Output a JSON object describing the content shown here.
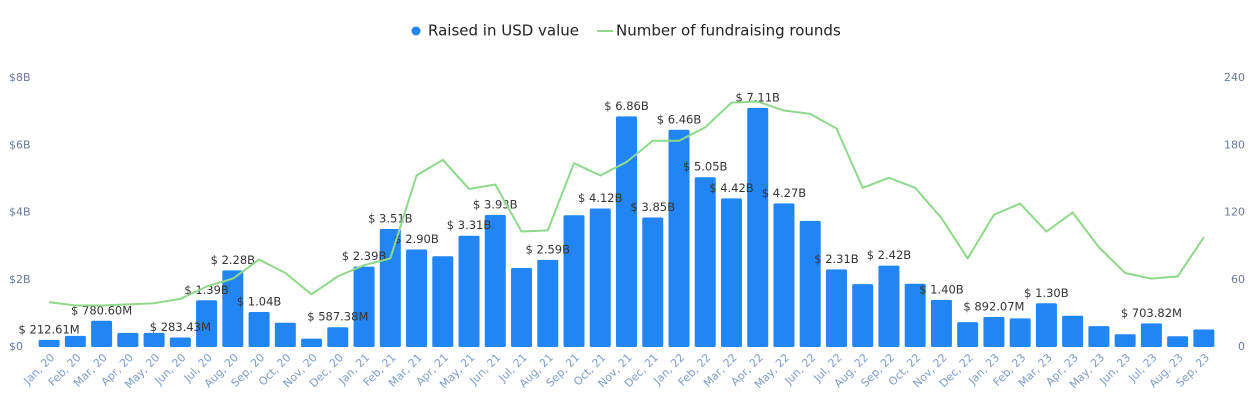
{
  "chart_data": {
    "type": "combo",
    "categories": [
      "Jan, 20",
      "Feb, 20",
      "Mar, 20",
      "Apr, 20",
      "May, 20",
      "Jun, 20",
      "Jul, 20",
      "Aug, 20",
      "Sep, 20",
      "Oct, 20",
      "Nov, 20",
      "Dec, 20",
      "Jan, 21",
      "Feb, 21",
      "Mar, 21",
      "Apr, 21",
      "May, 21",
      "Jun, 21",
      "Jul, 21",
      "Aug, 21",
      "Sep, 21",
      "Oct, 21",
      "Nov, 21",
      "Dec, 21",
      "Jan, 22",
      "Feb, 22",
      "Mar, 22",
      "Apr, 22",
      "May, 22",
      "Jun, 22",
      "Jul, 22",
      "Aug, 22",
      "Sep, 22",
      "Oct, 22",
      "Nov, 22",
      "Dec, 22",
      "Jan, 23",
      "Feb, 23",
      "Mar, 23",
      "Apr, 23",
      "May, 23",
      "Jun, 23",
      "Jul, 23",
      "Aug, 23",
      "Sep, 23"
    ],
    "series": [
      {
        "name": "Raised in USD value",
        "type": "bar",
        "color": "#2186f4",
        "values": [
          0.21261,
          0.33,
          0.7806,
          0.42,
          0.42,
          0.28343,
          1.39,
          2.28,
          1.04,
          0.72,
          0.25,
          0.58738,
          2.39,
          3.51,
          2.9,
          2.7,
          3.31,
          3.93,
          2.35,
          2.59,
          3.92,
          4.12,
          6.86,
          3.85,
          6.46,
          5.05,
          4.42,
          7.11,
          4.27,
          3.75,
          2.31,
          1.87,
          2.42,
          1.88,
          1.4,
          0.74,
          0.89207,
          0.85,
          1.3,
          0.93,
          0.62,
          0.38,
          0.70382,
          0.32,
          0.52
        ],
        "value_labels": [
          "$ 212.61M",
          null,
          "$ 780.60M",
          null,
          null,
          "$ 283.43M",
          "$ 1.39B",
          "$ 2.28B",
          "$ 1.04B",
          null,
          null,
          "$ 587.38M",
          "$ 2.39B",
          "$ 3.51B",
          "$ 2.90B",
          null,
          "$ 3.31B",
          "$ 3.93B",
          null,
          "$ 2.59B",
          null,
          "$ 4.12B",
          "$ 6.86B",
          "$ 3.85B",
          "$ 6.46B",
          "$ 5.05B",
          "$ 4.42B",
          "$ 7.11B",
          "$ 4.27B",
          null,
          "$ 2.31B",
          null,
          "$ 2.42B",
          null,
          "$ 1.40B",
          null,
          "$ 892.07M",
          null,
          "$ 1.30B",
          null,
          null,
          null,
          "$ 703.82M",
          null,
          null
        ]
      },
      {
        "name": "Number of fundraising rounds",
        "type": "line",
        "axis": "y2",
        "color": "#8fd88a",
        "values": [
          40,
          37,
          37,
          38,
          39,
          43,
          54,
          61,
          78,
          66,
          47,
          63,
          73,
          79,
          153,
          167,
          141,
          145,
          103,
          104,
          164,
          153,
          165,
          184,
          184,
          196,
          218,
          219,
          211,
          208,
          195,
          142,
          151,
          142,
          115,
          79,
          118,
          128,
          103,
          120,
          89,
          66,
          61,
          63,
          98
        ]
      }
    ],
    "ylim": [
      0,
      8
    ],
    "yticks": [
      {
        "value": 0,
        "label": "$0"
      },
      {
        "value": 2,
        "label": "$2B"
      },
      {
        "value": 4,
        "label": "$4B"
      },
      {
        "value": 6,
        "label": "$6B"
      },
      {
        "value": 8,
        "label": "$8B"
      }
    ],
    "y2lim": [
      0,
      240
    ],
    "y2ticks": [
      0,
      60,
      120,
      180,
      240
    ],
    "legend": "top"
  }
}
